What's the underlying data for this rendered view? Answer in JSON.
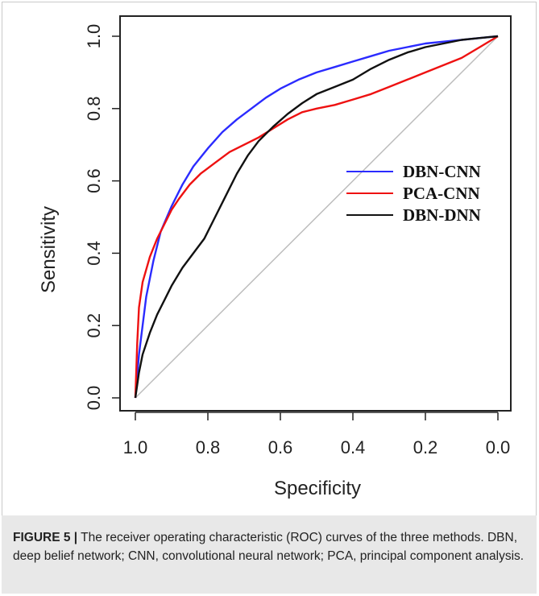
{
  "chart_data": {
    "type": "line",
    "xlabel": "Specificity",
    "ylabel": "Sensitivity",
    "xlim": [
      1.0,
      0.0
    ],
    "ylim": [
      0.0,
      1.0
    ],
    "x_ticks": [
      "1.0",
      "0.8",
      "0.6",
      "0.4",
      "0.2",
      "0.0"
    ],
    "y_ticks": [
      "0.0",
      "0.2",
      "0.4",
      "0.6",
      "0.8",
      "1.0"
    ],
    "legend_position": "right",
    "diagonal_color": "#bdbdbd",
    "series": [
      {
        "name": "DBN-CNN",
        "color": "#2b2bff",
        "x": [
          1.0,
          0.99,
          0.98,
          0.97,
          0.95,
          0.93,
          0.9,
          0.87,
          0.84,
          0.8,
          0.76,
          0.72,
          0.68,
          0.64,
          0.6,
          0.55,
          0.5,
          0.45,
          0.4,
          0.35,
          0.3,
          0.25,
          0.2,
          0.15,
          0.1,
          0.05,
          0.0
        ],
        "y": [
          0.0,
          0.12,
          0.2,
          0.28,
          0.38,
          0.46,
          0.53,
          0.59,
          0.64,
          0.69,
          0.735,
          0.77,
          0.8,
          0.83,
          0.855,
          0.88,
          0.9,
          0.915,
          0.93,
          0.945,
          0.96,
          0.97,
          0.98,
          0.985,
          0.99,
          0.995,
          1.0
        ]
      },
      {
        "name": "PCA-CNN",
        "color": "#ee1111",
        "x": [
          1.0,
          0.995,
          0.99,
          0.98,
          0.96,
          0.94,
          0.92,
          0.9,
          0.88,
          0.85,
          0.82,
          0.78,
          0.74,
          0.7,
          0.66,
          0.62,
          0.58,
          0.54,
          0.5,
          0.45,
          0.4,
          0.35,
          0.3,
          0.25,
          0.2,
          0.15,
          0.1,
          0.05,
          0.0
        ],
        "y": [
          0.0,
          0.15,
          0.25,
          0.32,
          0.39,
          0.44,
          0.48,
          0.52,
          0.55,
          0.59,
          0.62,
          0.65,
          0.68,
          0.7,
          0.72,
          0.745,
          0.77,
          0.79,
          0.8,
          0.81,
          0.825,
          0.84,
          0.86,
          0.88,
          0.9,
          0.92,
          0.94,
          0.97,
          1.0
        ]
      },
      {
        "name": "DBN-DNN",
        "color": "#111111",
        "x": [
          1.0,
          0.99,
          0.98,
          0.96,
          0.94,
          0.92,
          0.9,
          0.87,
          0.84,
          0.81,
          0.78,
          0.75,
          0.72,
          0.69,
          0.66,
          0.62,
          0.58,
          0.54,
          0.5,
          0.45,
          0.4,
          0.35,
          0.3,
          0.25,
          0.2,
          0.15,
          0.1,
          0.05,
          0.0
        ],
        "y": [
          0.0,
          0.07,
          0.12,
          0.18,
          0.23,
          0.27,
          0.31,
          0.36,
          0.4,
          0.44,
          0.5,
          0.56,
          0.62,
          0.67,
          0.71,
          0.75,
          0.785,
          0.815,
          0.84,
          0.86,
          0.88,
          0.91,
          0.935,
          0.955,
          0.97,
          0.98,
          0.99,
          0.995,
          1.0
        ]
      }
    ]
  },
  "caption": {
    "label": "FIGURE 5 |",
    "text": " The receiver operating characteristic (ROC) curves of the three methods. DBN, deep belief network; CNN, convolutional neural network; PCA, principal component analysis."
  }
}
